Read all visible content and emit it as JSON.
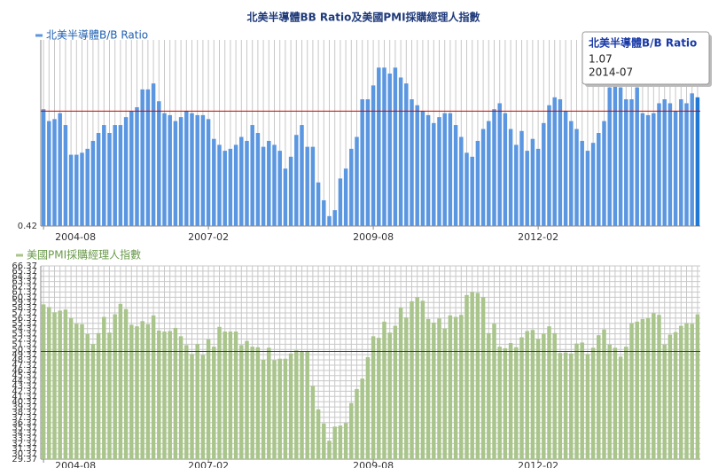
{
  "chart_data": [
    {
      "type": "bar",
      "title": "北美半導體BB Ratio及美國PMI採購經理人指數",
      "categories": [
        "2004-08",
        null,
        null,
        null,
        null,
        null,
        null,
        null,
        null,
        null,
        null,
        null,
        null,
        null,
        null,
        null,
        null,
        null,
        null,
        null,
        null,
        null,
        null,
        null,
        null,
        null,
        null,
        null,
        null,
        null,
        "2007-02",
        null,
        null,
        null,
        null,
        null,
        null,
        null,
        null,
        null,
        null,
        null,
        null,
        null,
        null,
        null,
        null,
        null,
        null,
        null,
        null,
        null,
        null,
        null,
        null,
        null,
        null,
        null,
        null,
        null,
        "2009-08",
        null,
        null,
        null,
        null,
        null,
        null,
        null,
        null,
        null,
        null,
        null,
        null,
        null,
        null,
        null,
        null,
        null,
        null,
        null,
        null,
        null,
        null,
        null,
        null,
        null,
        null,
        null,
        null,
        null,
        "2012-02",
        null,
        null,
        null,
        null,
        null,
        null,
        null,
        null,
        null,
        null,
        null,
        null,
        null,
        null,
        null,
        null,
        null,
        null,
        null,
        null,
        null,
        null,
        null,
        null,
        null,
        null,
        null,
        null,
        "2014-07"
      ],
      "series": [
        {
          "name": "北美半導體B/B Ratio",
          "color": "#5b96e0",
          "highlight_color": "#1f78d6",
          "values": [
            1.01,
            0.95,
            0.96,
            0.99,
            0.93,
            0.78,
            0.78,
            0.79,
            0.81,
            0.85,
            0.89,
            0.93,
            0.89,
            0.93,
            0.93,
            0.97,
            1.0,
            1.02,
            1.11,
            1.11,
            1.14,
            1.05,
            0.99,
            0.98,
            0.95,
            0.97,
            1.0,
            0.99,
            0.98,
            0.98,
            0.96,
            0.86,
            0.83,
            0.8,
            0.81,
            0.83,
            0.87,
            0.85,
            0.93,
            0.89,
            0.82,
            0.85,
            0.83,
            0.8,
            0.71,
            0.77,
            0.88,
            0.93,
            0.82,
            0.82,
            0.64,
            0.55,
            0.47,
            0.5,
            0.66,
            0.71,
            0.81,
            0.87,
            1.06,
            1.06,
            1.13,
            1.22,
            1.22,
            1.19,
            1.22,
            1.17,
            1.14,
            1.06,
            1.03,
            1.0,
            0.98,
            0.94,
            0.97,
            0.99,
            0.99,
            0.93,
            0.87,
            0.79,
            0.77,
            0.85,
            0.91,
            0.95,
            1.01,
            1.04,
            0.99,
            0.91,
            0.83,
            0.9,
            0.8,
            0.86,
            0.81,
            0.94,
            1.03,
            1.07,
            1.06,
            1.0,
            0.95,
            0.91,
            0.85,
            0.8,
            0.84,
            0.89,
            0.95,
            1.12,
            1.24,
            1.12,
            1.06,
            1.06,
            1.12,
            0.99,
            0.98,
            0.99,
            1.04,
            1.06,
            1.04,
            1.0,
            1.06,
            1.04,
            1.09,
            1.07
          ]
        }
      ],
      "ylim": [
        0.42,
        1.36
      ],
      "yticks": [
        0.42
      ],
      "reference_line": 1.0,
      "reference_color": "#cc0000",
      "grid": "vertical",
      "tooltip_index": 119
    },
    {
      "type": "bar",
      "categories": [
        "2004-08",
        null,
        null,
        null,
        null,
        null,
        null,
        null,
        null,
        null,
        null,
        null,
        null,
        null,
        null,
        null,
        null,
        null,
        null,
        null,
        null,
        null,
        null,
        null,
        null,
        null,
        null,
        null,
        null,
        null,
        "2007-02",
        null,
        null,
        null,
        null,
        null,
        null,
        null,
        null,
        null,
        null,
        null,
        null,
        null,
        null,
        null,
        null,
        null,
        null,
        null,
        null,
        null,
        null,
        null,
        null,
        null,
        null,
        null,
        null,
        null,
        "2009-08",
        null,
        null,
        null,
        null,
        null,
        null,
        null,
        null,
        null,
        null,
        null,
        null,
        null,
        null,
        null,
        null,
        null,
        null,
        null,
        null,
        null,
        null,
        null,
        null,
        null,
        null,
        null,
        null,
        null,
        "2012-02",
        null,
        null,
        null,
        null,
        null,
        null,
        null,
        null,
        null,
        null,
        null,
        null,
        null,
        null,
        null,
        null,
        null,
        null,
        null,
        null,
        null,
        null,
        null,
        null,
        null,
        null,
        null,
        null,
        null
      ],
      "series": [
        {
          "name": "美國PMI採購經理人指數",
          "color": "#a9c58b",
          "values": [
            59.0,
            58.5,
            57.5,
            57.8,
            58.0,
            56.4,
            55.3,
            55.2,
            53.3,
            51.4,
            53.5,
            56.6,
            53.6,
            57.1,
            59.1,
            58.1,
            55.1,
            54.8,
            55.8,
            55.2,
            56.9,
            54.0,
            53.8,
            53.9,
            54.5,
            52.9,
            51.2,
            49.5,
            51.4,
            49.3,
            52.3,
            50.9,
            54.7,
            53.8,
            53.8,
            53.8,
            51.2,
            52.0,
            50.9,
            50.8,
            48.4,
            50.7,
            48.3,
            48.6,
            48.6,
            49.6,
            50.2,
            50.0,
            49.9,
            43.4,
            38.9,
            36.2,
            32.9,
            35.6,
            35.8,
            36.3,
            40.1,
            42.8,
            44.8,
            48.9,
            52.9,
            52.6,
            55.7,
            53.6,
            54.9,
            58.4,
            56.5,
            59.6,
            60.4,
            59.7,
            56.2,
            55.5,
            56.3,
            54.4,
            56.9,
            56.6,
            57.0,
            60.8,
            61.4,
            61.2,
            60.4,
            53.5,
            55.3,
            50.9,
            50.6,
            51.6,
            50.8,
            52.7,
            53.9,
            54.1,
            52.4,
            53.4,
            54.8,
            53.5,
            49.7,
            49.8,
            49.6,
            51.5,
            51.7,
            49.5,
            50.7,
            53.1,
            54.2,
            51.3,
            50.7,
            49.0,
            50.9,
            55.4,
            55.7,
            56.2,
            56.4,
            57.3,
            57.0,
            51.3,
            53.2,
            53.7,
            54.9,
            55.4,
            55.3,
            57.1
          ]
        }
      ],
      "ylim": [
        29.37,
        66.37
      ],
      "yticks": [
        29.37,
        30.37,
        31.37,
        32.37,
        33.37,
        34.37,
        35.37,
        36.37,
        37.37,
        38.37,
        39.37,
        40.37,
        41.37,
        42.37,
        43.37,
        44.37,
        45.37,
        46.37,
        47.37,
        48.37,
        49.37,
        50.37,
        51.37,
        52.37,
        53.37,
        54.37,
        55.37,
        56.37,
        57.37,
        58.37,
        59.37,
        60.37,
        61.37,
        62.37,
        63.37,
        64.37,
        65.37,
        66.37
      ],
      "reference_line": 50.0,
      "reference_color": "#cc0000",
      "grid": "both"
    }
  ]
}
